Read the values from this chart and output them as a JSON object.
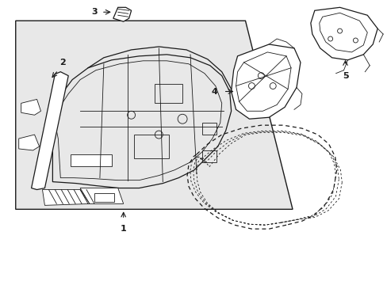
{
  "bg_color": "#ffffff",
  "line_color": "#1a1a1a",
  "label_color": "#111111",
  "box_fill": "#e8e8e8",
  "figsize": [
    4.89,
    3.6
  ],
  "dpi": 100,
  "img_path": null
}
